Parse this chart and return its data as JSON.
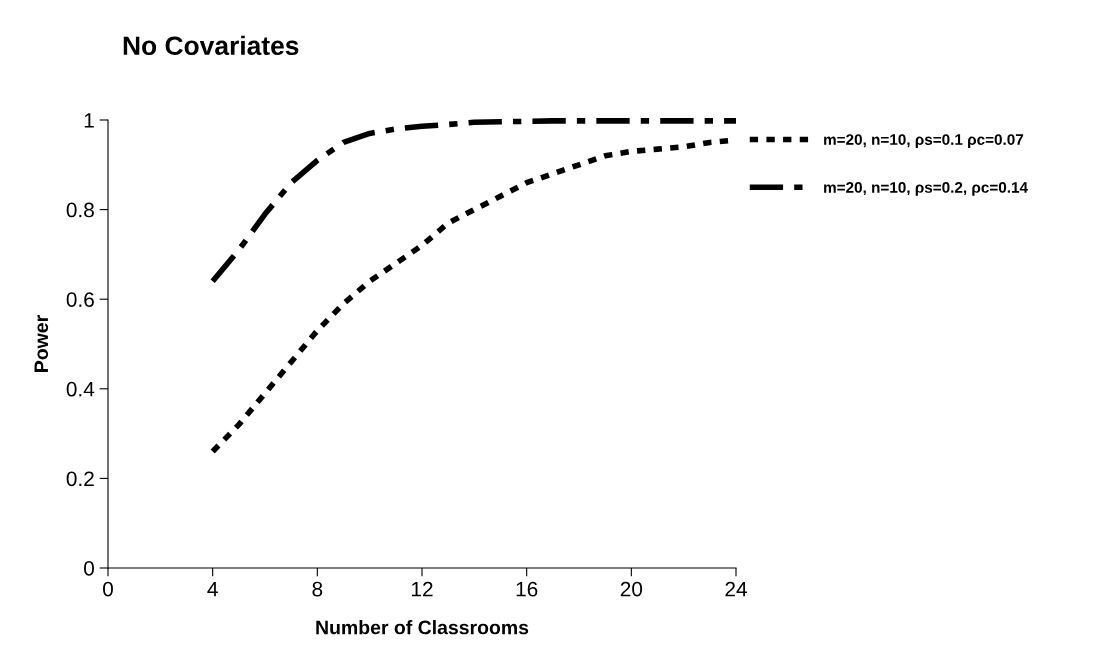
{
  "chart_data": {
    "type": "line",
    "title": "No Covariates",
    "xlabel": "Number of Classrooms",
    "ylabel": "Power",
    "x": [
      4,
      5,
      6,
      7,
      8,
      9,
      10,
      11,
      12,
      13,
      14,
      15,
      16,
      17,
      18,
      19,
      20,
      21,
      22,
      23,
      24
    ],
    "series": [
      {
        "name": "m=20, n=10, ρs=0.1 ρc=0.07",
        "color": "#000000",
        "line_style": "dotted",
        "values": [
          0.26,
          0.32,
          0.39,
          0.46,
          0.53,
          0.59,
          0.64,
          0.68,
          0.72,
          0.77,
          0.8,
          0.83,
          0.86,
          0.88,
          0.9,
          0.92,
          0.93,
          0.935,
          0.94,
          0.95,
          0.955
        ]
      },
      {
        "name": "m=20, n=10, ρs=0.2, ρc=0.14",
        "color": "#000000",
        "line_style": "dashed",
        "values": [
          0.64,
          0.71,
          0.79,
          0.86,
          0.91,
          0.95,
          0.97,
          0.98,
          0.986,
          0.99,
          0.995,
          0.996,
          0.997,
          0.998,
          0.998,
          0.998,
          0.998,
          0.998,
          0.998,
          0.998,
          0.998
        ]
      }
    ],
    "xlim": [
      0,
      24
    ],
    "xticks": [
      0,
      4,
      8,
      12,
      16,
      20,
      24
    ],
    "ylim": [
      0,
      1
    ],
    "yticks": [
      0,
      0.2,
      0.4,
      0.6,
      0.8,
      1
    ],
    "grid": false,
    "legend": "right",
    "marker": "none"
  }
}
